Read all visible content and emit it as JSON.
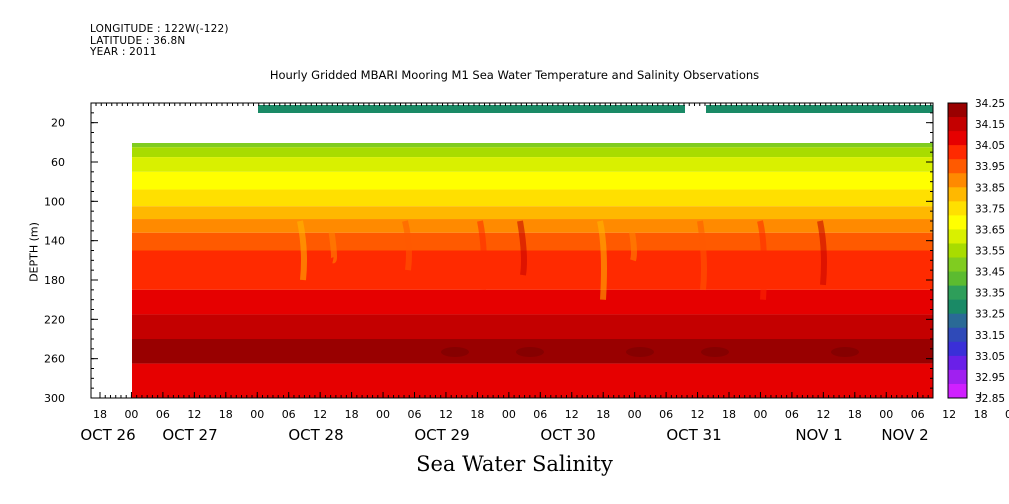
{
  "header": {
    "lines": [
      "LONGITUDE : 122W(-122)",
      "LATITUDE : 36.8N",
      "YEAR : 2011"
    ]
  },
  "title": "Hourly Gridded MBARI Mooring M1 Sea Water Temperature and Salinity Observations",
  "ylabel": "DEPTH (m)",
  "xtitle": "Sea Water Salinity",
  "chart_data": {
    "type": "heatmap",
    "title": "Hourly Gridded MBARI Mooring M1 Sea Water Temperature and Salinity Observations",
    "ylabel": "DEPTH (m)",
    "xlabel": "Sea Water Salinity",
    "y_axis": {
      "range": [
        300,
        0
      ],
      "ticks": [
        20,
        60,
        100,
        140,
        180,
        220,
        260,
        300
      ]
    },
    "x_axis": {
      "hour_ticks": [
        "18",
        "00",
        "06",
        "12",
        "18",
        "00",
        "06",
        "12",
        "18",
        "00",
        "06",
        "12",
        "18",
        "00",
        "06",
        "12",
        "18",
        "00",
        "06",
        "12",
        "18",
        "00",
        "06",
        "12",
        "18",
        "00",
        "06",
        "12",
        "18",
        "00",
        "06"
      ],
      "date_labels": [
        "OCT 26",
        "OCT 27",
        "OCT 28",
        "OCT 29",
        "OCT 30",
        "OCT 31",
        "NOV  1",
        "NOV  2"
      ]
    },
    "colorbar": {
      "levels": [
        34.25,
        34.15,
        34.05,
        33.95,
        33.85,
        33.75,
        33.65,
        33.55,
        33.45,
        33.35,
        33.25,
        33.15,
        33.05,
        32.95,
        32.85
      ],
      "colors": [
        "#990000",
        "#c40000",
        "#e60000",
        "#ff2a00",
        "#ff5a00",
        "#ff8a00",
        "#ffb800",
        "#ffe000",
        "#ffff00",
        "#d9f000",
        "#a8dc00",
        "#80cc20",
        "#5cbb30",
        "#2e9e5a",
        "#1a8a66",
        "#2a6a96",
        "#2f4ab8",
        "#3a2fd8",
        "#6a20e8",
        "#a020f0",
        "#d020ff"
      ]
    },
    "depth_band_colors": [
      {
        "depth": 35,
        "color": "#5cbb30"
      },
      {
        "depth": 45,
        "color": "#80cc20"
      },
      {
        "depth": 55,
        "color": "#a8dc00"
      },
      {
        "depth": 70,
        "color": "#d9f000"
      },
      {
        "depth": 88,
        "color": "#ffff00"
      },
      {
        "depth": 105,
        "color": "#ffe000"
      },
      {
        "depth": 118,
        "color": "#ffb800"
      },
      {
        "depth": 132,
        "color": "#ff8a00"
      },
      {
        "depth": 150,
        "color": "#ff5a00"
      },
      {
        "depth": 190,
        "color": "#ff2a00"
      },
      {
        "depth": 215,
        "color": "#e60000"
      },
      {
        "depth": 240,
        "color": "#c40000"
      },
      {
        "depth": 265,
        "color": "#990000"
      },
      {
        "depth": 300,
        "color": "#e60000"
      }
    ]
  }
}
